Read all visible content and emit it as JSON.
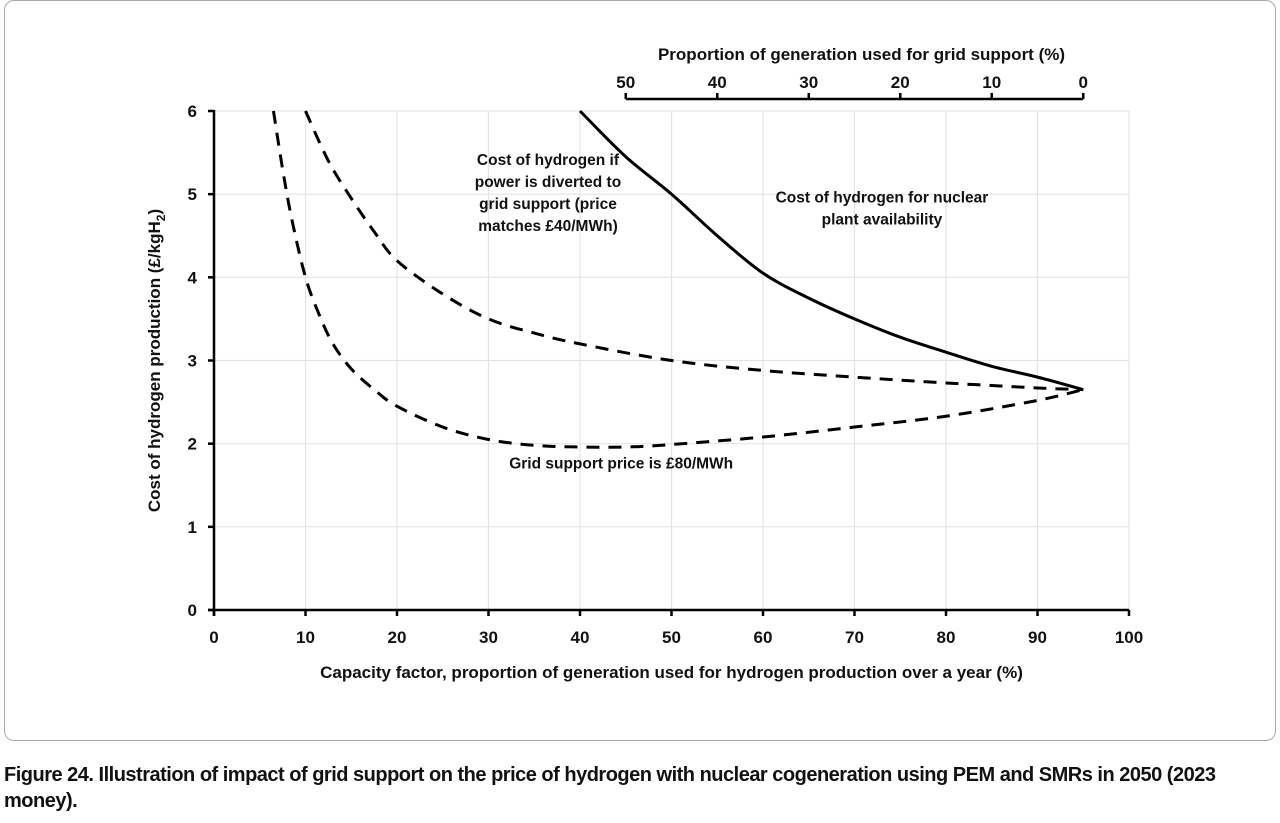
{
  "chart_data": {
    "type": "line",
    "title": "",
    "xlabel": "Capacity factor, proportion of generation used for hydrogen production over a year (%)",
    "ylabel": "Cost of hydrogen production (£/kgH",
    "ylabel_sub": "2",
    "ylabel_end": ")",
    "xlim": [
      0,
      100
    ],
    "ylim": [
      0,
      6
    ],
    "x_ticks": [
      "0",
      "10",
      "20",
      "30",
      "40",
      "50",
      "60",
      "70",
      "80",
      "90",
      "100"
    ],
    "y_ticks": [
      "0",
      "1",
      "2",
      "3",
      "4",
      "5",
      "6"
    ],
    "grid": true,
    "secondary_x_axis": {
      "label": "Proportion of generation used for grid support  (%)",
      "ticks": [
        "50",
        "40",
        "30",
        "20",
        "10",
        "0"
      ],
      "range_capacity_factor": [
        45,
        95
      ]
    },
    "series": [
      {
        "name": "Cost of hydrogen for nuclear plant availability",
        "style": "solid",
        "x": [
          40,
          45,
          50,
          55,
          60,
          65,
          70,
          75,
          80,
          85,
          90,
          95
        ],
        "y": [
          6.0,
          5.45,
          5.0,
          4.5,
          4.05,
          3.75,
          3.5,
          3.28,
          3.1,
          2.93,
          2.8,
          2.65
        ]
      },
      {
        "name": "Cost of hydrogen if power is diverted to grid support (price matches £40/MWh)",
        "style": "dashed",
        "x": [
          10,
          12.5,
          15,
          17.5,
          20,
          25,
          30,
          35,
          40,
          50,
          60,
          70,
          80,
          90,
          95
        ],
        "y": [
          6.0,
          5.4,
          4.95,
          4.55,
          4.2,
          3.8,
          3.5,
          3.33,
          3.2,
          3.0,
          2.88,
          2.8,
          2.73,
          2.67,
          2.65
        ]
      },
      {
        "name": "Grid support price is £80/MWh",
        "style": "dashed",
        "x": [
          6.5,
          7.5,
          8.5,
          10,
          11.5,
          13,
          15,
          17.5,
          20,
          25,
          30,
          35,
          40,
          45,
          50,
          60,
          70,
          80,
          90,
          95
        ],
        "y": [
          6.0,
          5.3,
          4.7,
          4.0,
          3.55,
          3.2,
          2.9,
          2.65,
          2.45,
          2.2,
          2.05,
          1.98,
          1.96,
          1.96,
          1.99,
          2.08,
          2.2,
          2.33,
          2.52,
          2.65
        ]
      }
    ],
    "annotations": [
      {
        "lines": [
          "Cost of hydrogen if",
          "power is diverted to",
          "grid support (price",
          "matches £40/MWh)"
        ],
        "x": 36.5,
        "y": 5.35
      },
      {
        "lines": [
          "Cost of hydrogen for nuclear",
          "plant availability"
        ],
        "x": 73,
        "y": 4.9
      },
      {
        "lines": [
          "Grid support price is £80/MWh"
        ],
        "x": 44.5,
        "y": 1.7
      }
    ]
  },
  "caption": {
    "text": "Figure 24. Illustration of impact of grid support on the price of hydrogen with nuclear cogeneration using PEM and SMRs in 2050 (2023 money)."
  }
}
